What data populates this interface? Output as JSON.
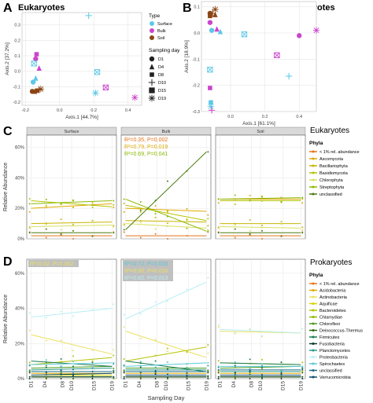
{
  "colors": {
    "surface": "#5bc8e6",
    "bulk": "#cc44cc",
    "soil": "#8b4513",
    "strip_bg": "#d9d9d9",
    "grid": "#e6e6e6",
    "panel_border": "#555555"
  },
  "panel_letters": {
    "a": "A",
    "b": "B",
    "c": "C",
    "d": "D"
  },
  "legend_pcoa": {
    "type_title": "Type",
    "types": [
      "Surface",
      "Bulk",
      "Soil"
    ],
    "day_title": "Sampling day",
    "days": [
      "D1",
      "D4",
      "D8",
      "D10",
      "D15",
      "D19"
    ]
  },
  "chart_data": [
    {
      "id": "A",
      "type": "scatter",
      "title": "Eukaryotes",
      "xlabel": "Axis.1  [44.7%]",
      "ylabel": "Axis.2  [37.2%]",
      "xlim": [
        -0.22,
        0.48
      ],
      "ylim": [
        -0.22,
        0.38
      ],
      "xticks": [
        "-0.2",
        "0.0",
        "0.2",
        "0.4"
      ],
      "xtick_values": [
        -0.2,
        0.0,
        0.2,
        0.4
      ],
      "yticks": [
        "-0.2",
        "-0.1",
        "0.0",
        "0.1",
        "0.2",
        "0.3"
      ],
      "ytick_values": [
        -0.2,
        -0.1,
        0.0,
        0.1,
        0.2,
        0.3
      ],
      "points": [
        {
          "x": 0.17,
          "y": 0.36,
          "type": "Surface",
          "day": "D10"
        },
        {
          "x": -0.155,
          "y": -0.07,
          "type": "Surface",
          "day": "D1"
        },
        {
          "x": -0.14,
          "y": -0.045,
          "type": "Surface",
          "day": "D4"
        },
        {
          "x": 0.22,
          "y": -0.005,
          "type": "Surface",
          "day": "D15"
        },
        {
          "x": 0.21,
          "y": -0.14,
          "type": "Surface",
          "day": "D19"
        },
        {
          "x": -0.12,
          "y": 0.02,
          "type": "Bulk",
          "day": "D4"
        },
        {
          "x": -0.135,
          "y": 0.11,
          "type": "Bulk",
          "day": "D8"
        },
        {
          "x": -0.14,
          "y": 0.08,
          "type": "Bulk",
          "day": "D1"
        },
        {
          "x": 0.27,
          "y": -0.105,
          "type": "Bulk",
          "day": "D15"
        },
        {
          "x": 0.44,
          "y": -0.17,
          "type": "Bulk",
          "day": "D19"
        },
        {
          "x": -0.15,
          "y": 0.05,
          "type": "Surface",
          "day": "D15"
        },
        {
          "x": -0.16,
          "y": -0.13,
          "type": "Soil",
          "day": "D1"
        },
        {
          "x": -0.145,
          "y": -0.13,
          "type": "Soil",
          "day": "D4"
        },
        {
          "x": -0.13,
          "y": -0.125,
          "type": "Soil",
          "day": "D8"
        },
        {
          "x": -0.12,
          "y": -0.12,
          "type": "Soil",
          "day": "D10"
        },
        {
          "x": -0.11,
          "y": -0.115,
          "type": "Soil",
          "day": "D19"
        }
      ]
    },
    {
      "id": "B",
      "type": "scatter",
      "title": "Prokaryotes",
      "xlabel": "Axis.1  [61.1%]",
      "ylabel": "Axis.2  [18.9%]",
      "xlim": [
        -0.17,
        0.5
      ],
      "ylim": [
        -0.3,
        0.12
      ],
      "xticks": [
        "0.0",
        "0.2",
        "0.4"
      ],
      "xtick_values": [
        0.0,
        0.2,
        0.4
      ],
      "yticks": [
        "-0.3",
        "-0.2",
        "-0.1",
        "0.0",
        "0.1"
      ],
      "ytick_values": [
        -0.3,
        -0.2,
        -0.1,
        0.0,
        0.1
      ],
      "points": [
        {
          "x": -0.09,
          "y": 0.09,
          "type": "Soil",
          "day": "D19"
        },
        {
          "x": -0.12,
          "y": 0.075,
          "type": "Soil",
          "day": "D1"
        },
        {
          "x": -0.105,
          "y": 0.075,
          "type": "Soil",
          "day": "D10"
        },
        {
          "x": -0.12,
          "y": 0.065,
          "type": "Soil",
          "day": "D8"
        },
        {
          "x": -0.09,
          "y": 0.07,
          "type": "Soil",
          "day": "D4"
        },
        {
          "x": -0.12,
          "y": 0.04,
          "type": "Bulk",
          "day": "D1"
        },
        {
          "x": -0.08,
          "y": 0.015,
          "type": "Bulk",
          "day": "D4"
        },
        {
          "x": -0.06,
          "y": 0.005,
          "type": "Surface",
          "day": "D4"
        },
        {
          "x": -0.11,
          "y": 0.01,
          "type": "Surface",
          "day": "D1"
        },
        {
          "x": 0.08,
          "y": -0.005,
          "type": "Surface",
          "day": "D15"
        },
        {
          "x": 0.4,
          "y": -0.01,
          "type": "Bulk",
          "day": "D1"
        },
        {
          "x": 0.5,
          "y": 0.01,
          "type": "Bulk",
          "day": "D19"
        },
        {
          "x": 0.27,
          "y": -0.085,
          "type": "Bulk",
          "day": "D15"
        },
        {
          "x": 0.34,
          "y": -0.165,
          "type": "Surface",
          "day": "D10"
        },
        {
          "x": -0.12,
          "y": -0.14,
          "type": "Surface",
          "day": "D15"
        },
        {
          "x": -0.12,
          "y": -0.21,
          "type": "Bulk",
          "day": "D8"
        },
        {
          "x": -0.115,
          "y": -0.265,
          "type": "Surface",
          "day": "D8"
        },
        {
          "x": -0.115,
          "y": -0.28,
          "type": "Surface",
          "day": "D19"
        },
        {
          "x": -0.11,
          "y": -0.295,
          "type": "Bulk",
          "day": "D10"
        }
      ]
    },
    {
      "id": "C",
      "type": "line",
      "title": "Eukaryotes",
      "ylabel": "Relative Abundance",
      "ylim": [
        0,
        68
      ],
      "yticks": [
        "0%",
        "20%",
        "40%",
        "60%"
      ],
      "ytick_values": [
        0,
        20,
        40,
        60
      ],
      "facets": [
        "Surface",
        "Bulk",
        "Soil"
      ],
      "x": [
        1,
        4,
        8,
        10,
        15,
        19
      ],
      "legend_title": "Phyla",
      "series": [
        {
          "name": "< 1% rel. abundance",
          "color": "#e8731a",
          "values": {
            "Surface": [
              2,
              2
            ],
            "Bulk": [
              2,
              2
            ],
            "Soil": [
              2,
              2
            ]
          }
        },
        {
          "name": "Ascomycota",
          "color": "#e0a800",
          "values": {
            "Surface": [
              20,
              23
            ],
            "Bulk": [
              20,
              18
            ],
            "Soil": [
              26,
              26
            ]
          }
        },
        {
          "name": "Bacillariophyta",
          "color": "#c8b400",
          "values": {
            "Surface": [
              10,
              11
            ],
            "Bulk": [
              12,
              11
            ],
            "Soil": [
              10,
              10
            ]
          }
        },
        {
          "name": "Basidiomycota",
          "color": "#b5c200",
          "values": {
            "Surface": [
              25,
              21
            ],
            "Bulk": [
              22,
              12
            ],
            "Soil": [
              25,
              25
            ]
          }
        },
        {
          "name": "Chlorophyta",
          "color": "#d8e060",
          "values": {
            "Surface": [
              8,
              9
            ],
            "Bulk": [
              10,
              7
            ],
            "Soil": [
              8,
              7
            ]
          }
        },
        {
          "name": "Streptophyta",
          "color": "#8ab800",
          "values": {
            "Surface": [
              23,
              25
            ],
            "Bulk": [
              26,
              5
            ],
            "Soil": [
              26,
              27
            ]
          }
        },
        {
          "name": "unclassified",
          "color": "#4a7a10",
          "values": {
            "Surface": [
              4,
              4
            ],
            "Bulk": [
              6,
              57
            ],
            "Soil": [
              4,
              4
            ]
          }
        }
      ],
      "annotations": [
        {
          "facet": "Bulk",
          "text": "R²=0.35, P=0.002",
          "color": "#e8731a"
        },
        {
          "facet": "Bulk",
          "text": "R²=0.79, P=0.019",
          "color": "#e0a800"
        },
        {
          "facet": "Bulk",
          "text": "R²=0.69, P=0.041",
          "color": "#8ab800"
        }
      ]
    },
    {
      "id": "D",
      "type": "line",
      "title": "Prokaryotes",
      "xlabel": "Sampling Day",
      "ylabel": "Relative Abundance",
      "ylim": [
        0,
        68
      ],
      "yticks": [
        "0%",
        "20%",
        "40%",
        "60%"
      ],
      "ytick_values": [
        0,
        20,
        40,
        60
      ],
      "facets": [
        "",
        "",
        ""
      ],
      "x": [
        1,
        4,
        8,
        10,
        15,
        19
      ],
      "xticks": [
        "D1",
        "D4",
        "D8",
        "D10",
        "D15",
        "D19"
      ],
      "legend_title": "Phyla",
      "series": [
        {
          "name": "< 1% rel. abundance",
          "color": "#e8731a",
          "values": {
            "0": [
              1,
              1
            ],
            "1": [
              1,
              1
            ],
            "2": [
              1,
              1
            ]
          }
        },
        {
          "name": "Acidobacteria",
          "color": "#e0a800",
          "values": {
            "0": [
              3,
              3
            ],
            "1": [
              3,
              3
            ],
            "2": [
              3,
              3
            ]
          }
        },
        {
          "name": "Actinobacteria",
          "color": "#ebe060",
          "values": {
            "0": [
              25,
              14
            ],
            "1": [
              27,
              12
            ],
            "2": [
              27,
              26
            ]
          }
        },
        {
          "name": "Aquificae",
          "color": "#d4d400",
          "values": {
            "0": [
              2,
              2
            ],
            "1": [
              2,
              2
            ],
            "2": [
              2,
              2
            ]
          }
        },
        {
          "name": "Bacteroidetes",
          "color": "#b5c200",
          "values": {
            "0": [
              8,
              12
            ],
            "1": [
              10,
              18
            ],
            "2": [
              9,
              8
            ]
          }
        },
        {
          "name": "Chlamydiae",
          "color": "#8ab800",
          "values": {
            "0": [
              1,
              1
            ],
            "1": [
              1,
              1
            ],
            "2": [
              1,
              1
            ]
          }
        },
        {
          "name": "Chloroflexi",
          "color": "#4a9a20",
          "values": {
            "0": [
              6,
              7
            ],
            "1": [
              6,
              6
            ],
            "2": [
              6,
              7
            ]
          }
        },
        {
          "name": "Deinococcus-Thermus",
          "color": "#2a6a10",
          "values": {
            "0": [
              1,
              1
            ],
            "1": [
              1,
              1
            ],
            "2": [
              1,
              1
            ]
          }
        },
        {
          "name": "Firmicutes",
          "color": "#1a7a50",
          "values": {
            "0": [
              10,
              7
            ],
            "1": [
              10,
              4
            ],
            "2": [
              9,
              8
            ]
          }
        },
        {
          "name": "Fusobacteria",
          "color": "#0a3a2a",
          "values": {
            "0": [
              1,
              1
            ],
            "1": [
              1,
              1
            ],
            "2": [
              1,
              1
            ]
          }
        },
        {
          "name": "Planctomycetes",
          "color": "#2a9a8a",
          "values": {
            "0": [
              5,
              6
            ],
            "1": [
              5,
              5
            ],
            "2": [
              4,
              4
            ]
          }
        },
        {
          "name": "Proteobacteria",
          "color": "#b8eef4",
          "values": {
            "0": [
              35,
              40
            ],
            "1": [
              34,
              55
            ],
            "2": [
              28,
              26
            ]
          }
        },
        {
          "name": "Spirochaetes",
          "color": "#5ac8d8",
          "values": {
            "0": [
              8,
              9
            ],
            "1": [
              7,
              9
            ],
            "2": [
              7,
              7
            ]
          }
        },
        {
          "name": "unclassified",
          "color": "#1a6a8a",
          "values": {
            "0": [
              4,
              4
            ],
            "1": [
              4,
              4
            ],
            "2": [
              5,
              5
            ]
          }
        },
        {
          "name": "Verrucomicrobia",
          "color": "#0a4a6a",
          "values": {
            "0": [
              2,
              3
            ],
            "1": [
              2,
              2
            ],
            "2": [
              2,
              2
            ]
          }
        }
      ],
      "annotations": [
        {
          "facet": "0",
          "text": "R²=0.92, P=0.002",
          "color": "#ebe060"
        },
        {
          "facet": "1",
          "text": "R²=0.72, P=0.033",
          "color": "#5ac8d8"
        },
        {
          "facet": "1",
          "text": "R²=0.80, P=0.016",
          "color": "#ebe060"
        },
        {
          "facet": "1",
          "text": "R²=0.82, P=0.013",
          "color": "#b8eef4"
        }
      ]
    }
  ]
}
